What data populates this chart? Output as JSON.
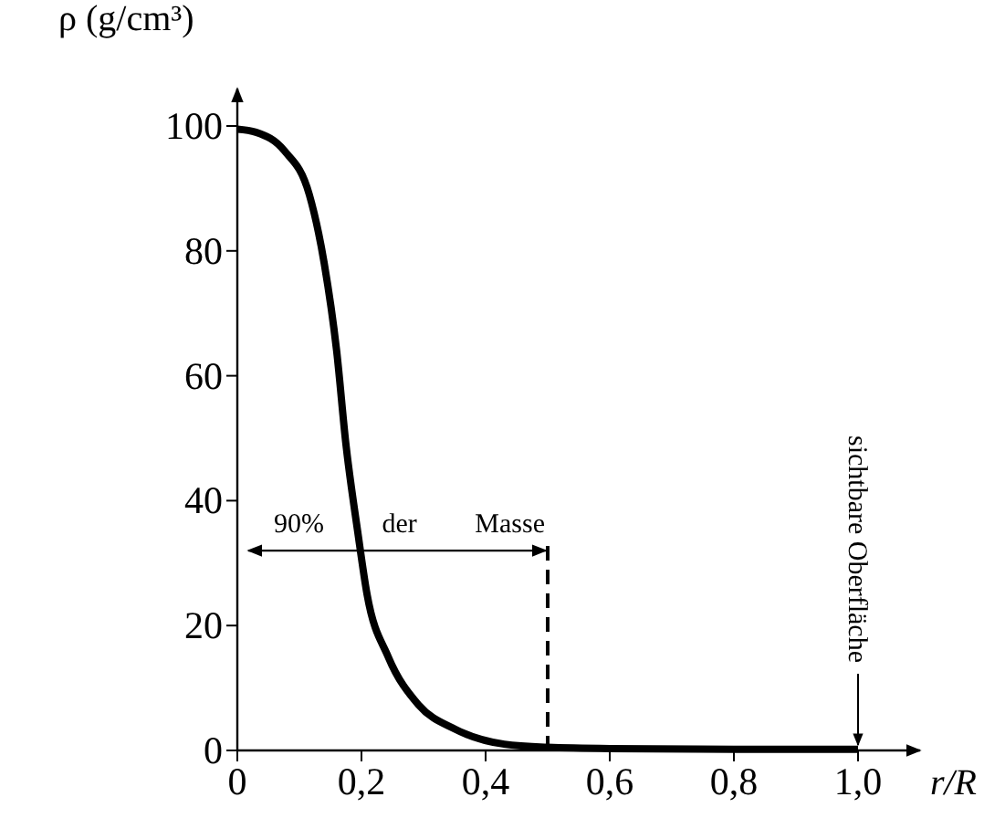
{
  "chart_data": {
    "type": "line",
    "xlabel": "r/R",
    "ylabel": "ρ (g/cm³)",
    "xlim": [
      0,
      1.1
    ],
    "ylim": [
      0,
      106
    ],
    "xticks": [
      0,
      {
        "value": 0.2,
        "label": "0,2"
      },
      {
        "value": 0.4,
        "label": "0,4"
      },
      {
        "value": 0.6,
        "label": "0,6"
      },
      {
        "value": 0.8,
        "label": "0,8"
      },
      {
        "value": 1.0,
        "label": "1,0"
      }
    ],
    "yticks": [
      0,
      20,
      40,
      60,
      80,
      100
    ],
    "x": [
      0,
      0.03,
      0.076,
      0.116,
      0.14,
      0.16,
      0.175,
      0.194,
      0.209,
      0.243,
      0.292,
      0.351,
      0.43,
      0.5,
      0.6,
      0.8,
      1.0
    ],
    "series": [
      {
        "color": "#000000",
        "values": [
          99.5,
          99,
          96,
          89,
          78,
          64,
          49,
          35,
          25,
          15,
          7.3,
          3.4,
          1,
          0.5,
          0.3,
          0.2,
          0.2
        ]
      }
    ],
    "ref_lines": [
      {
        "axis": "x",
        "value": 0.5,
        "line_style": "dashed"
      }
    ],
    "annotations": [
      {
        "text": "90% der Masse",
        "x": 0.5,
        "y": 32
      },
      {
        "text": "sichtbare Oberfläche",
        "x": 1.0,
        "y": 0
      }
    ],
    "marker": "none",
    "line_style": "solid"
  }
}
